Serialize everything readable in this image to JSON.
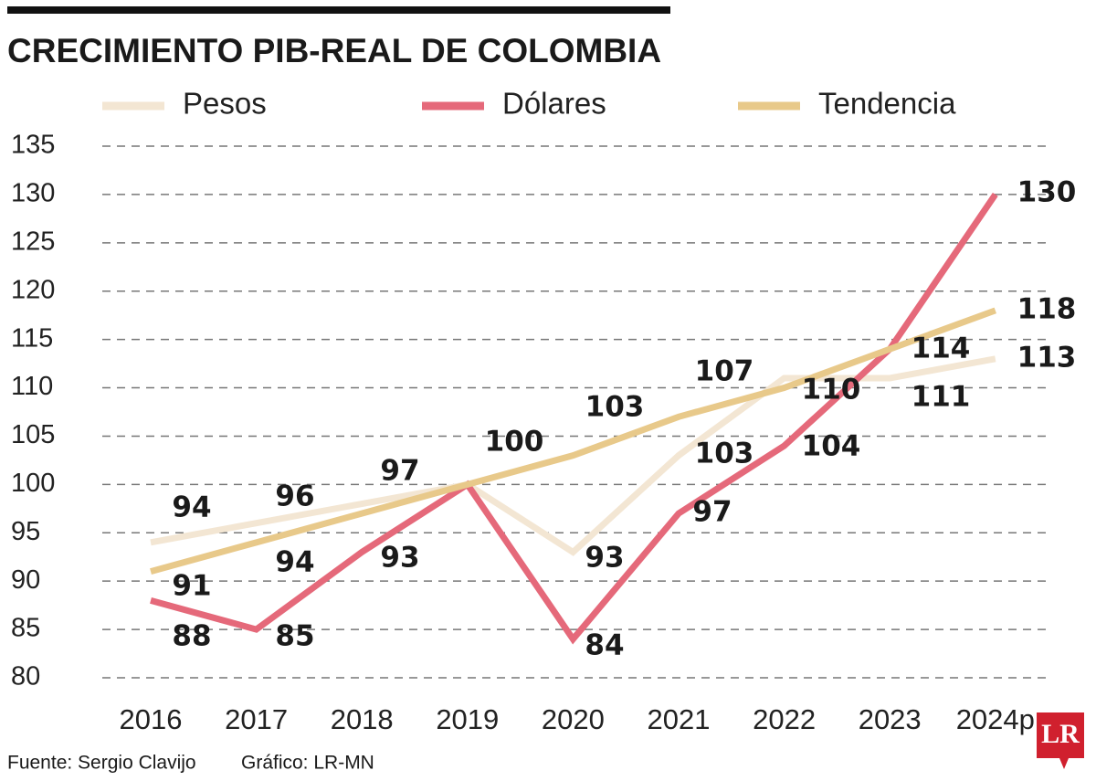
{
  "chart_data": {
    "type": "line",
    "title": "CRECIMIENTO PIB-REAL DE COLOMBIA",
    "categories": [
      "2016",
      "2017",
      "2018",
      "2019",
      "2020",
      "2021",
      "2022",
      "2023",
      "2024p"
    ],
    "series": [
      {
        "name": "Pesos",
        "color": "#f3e6d3",
        "values": [
          94,
          96,
          98,
          100,
          93,
          103,
          111,
          111,
          113
        ]
      },
      {
        "name": "Dólares",
        "color": "#e5697a",
        "values": [
          88,
          85,
          93,
          100,
          84,
          97,
          104,
          114,
          130
        ]
      },
      {
        "name": "Tendencia",
        "color": "#e8c98a",
        "values": [
          91,
          94,
          97,
          100,
          103,
          107,
          110,
          114,
          118
        ]
      }
    ],
    "ylim": [
      80,
      135
    ],
    "yticks": [
      80,
      85,
      90,
      95,
      100,
      105,
      110,
      115,
      120,
      125,
      130,
      135
    ],
    "grid": true,
    "source": "Fuente:  Sergio Clavijo",
    "credit": "Gráfico: LR-MN",
    "logo": "LR"
  }
}
